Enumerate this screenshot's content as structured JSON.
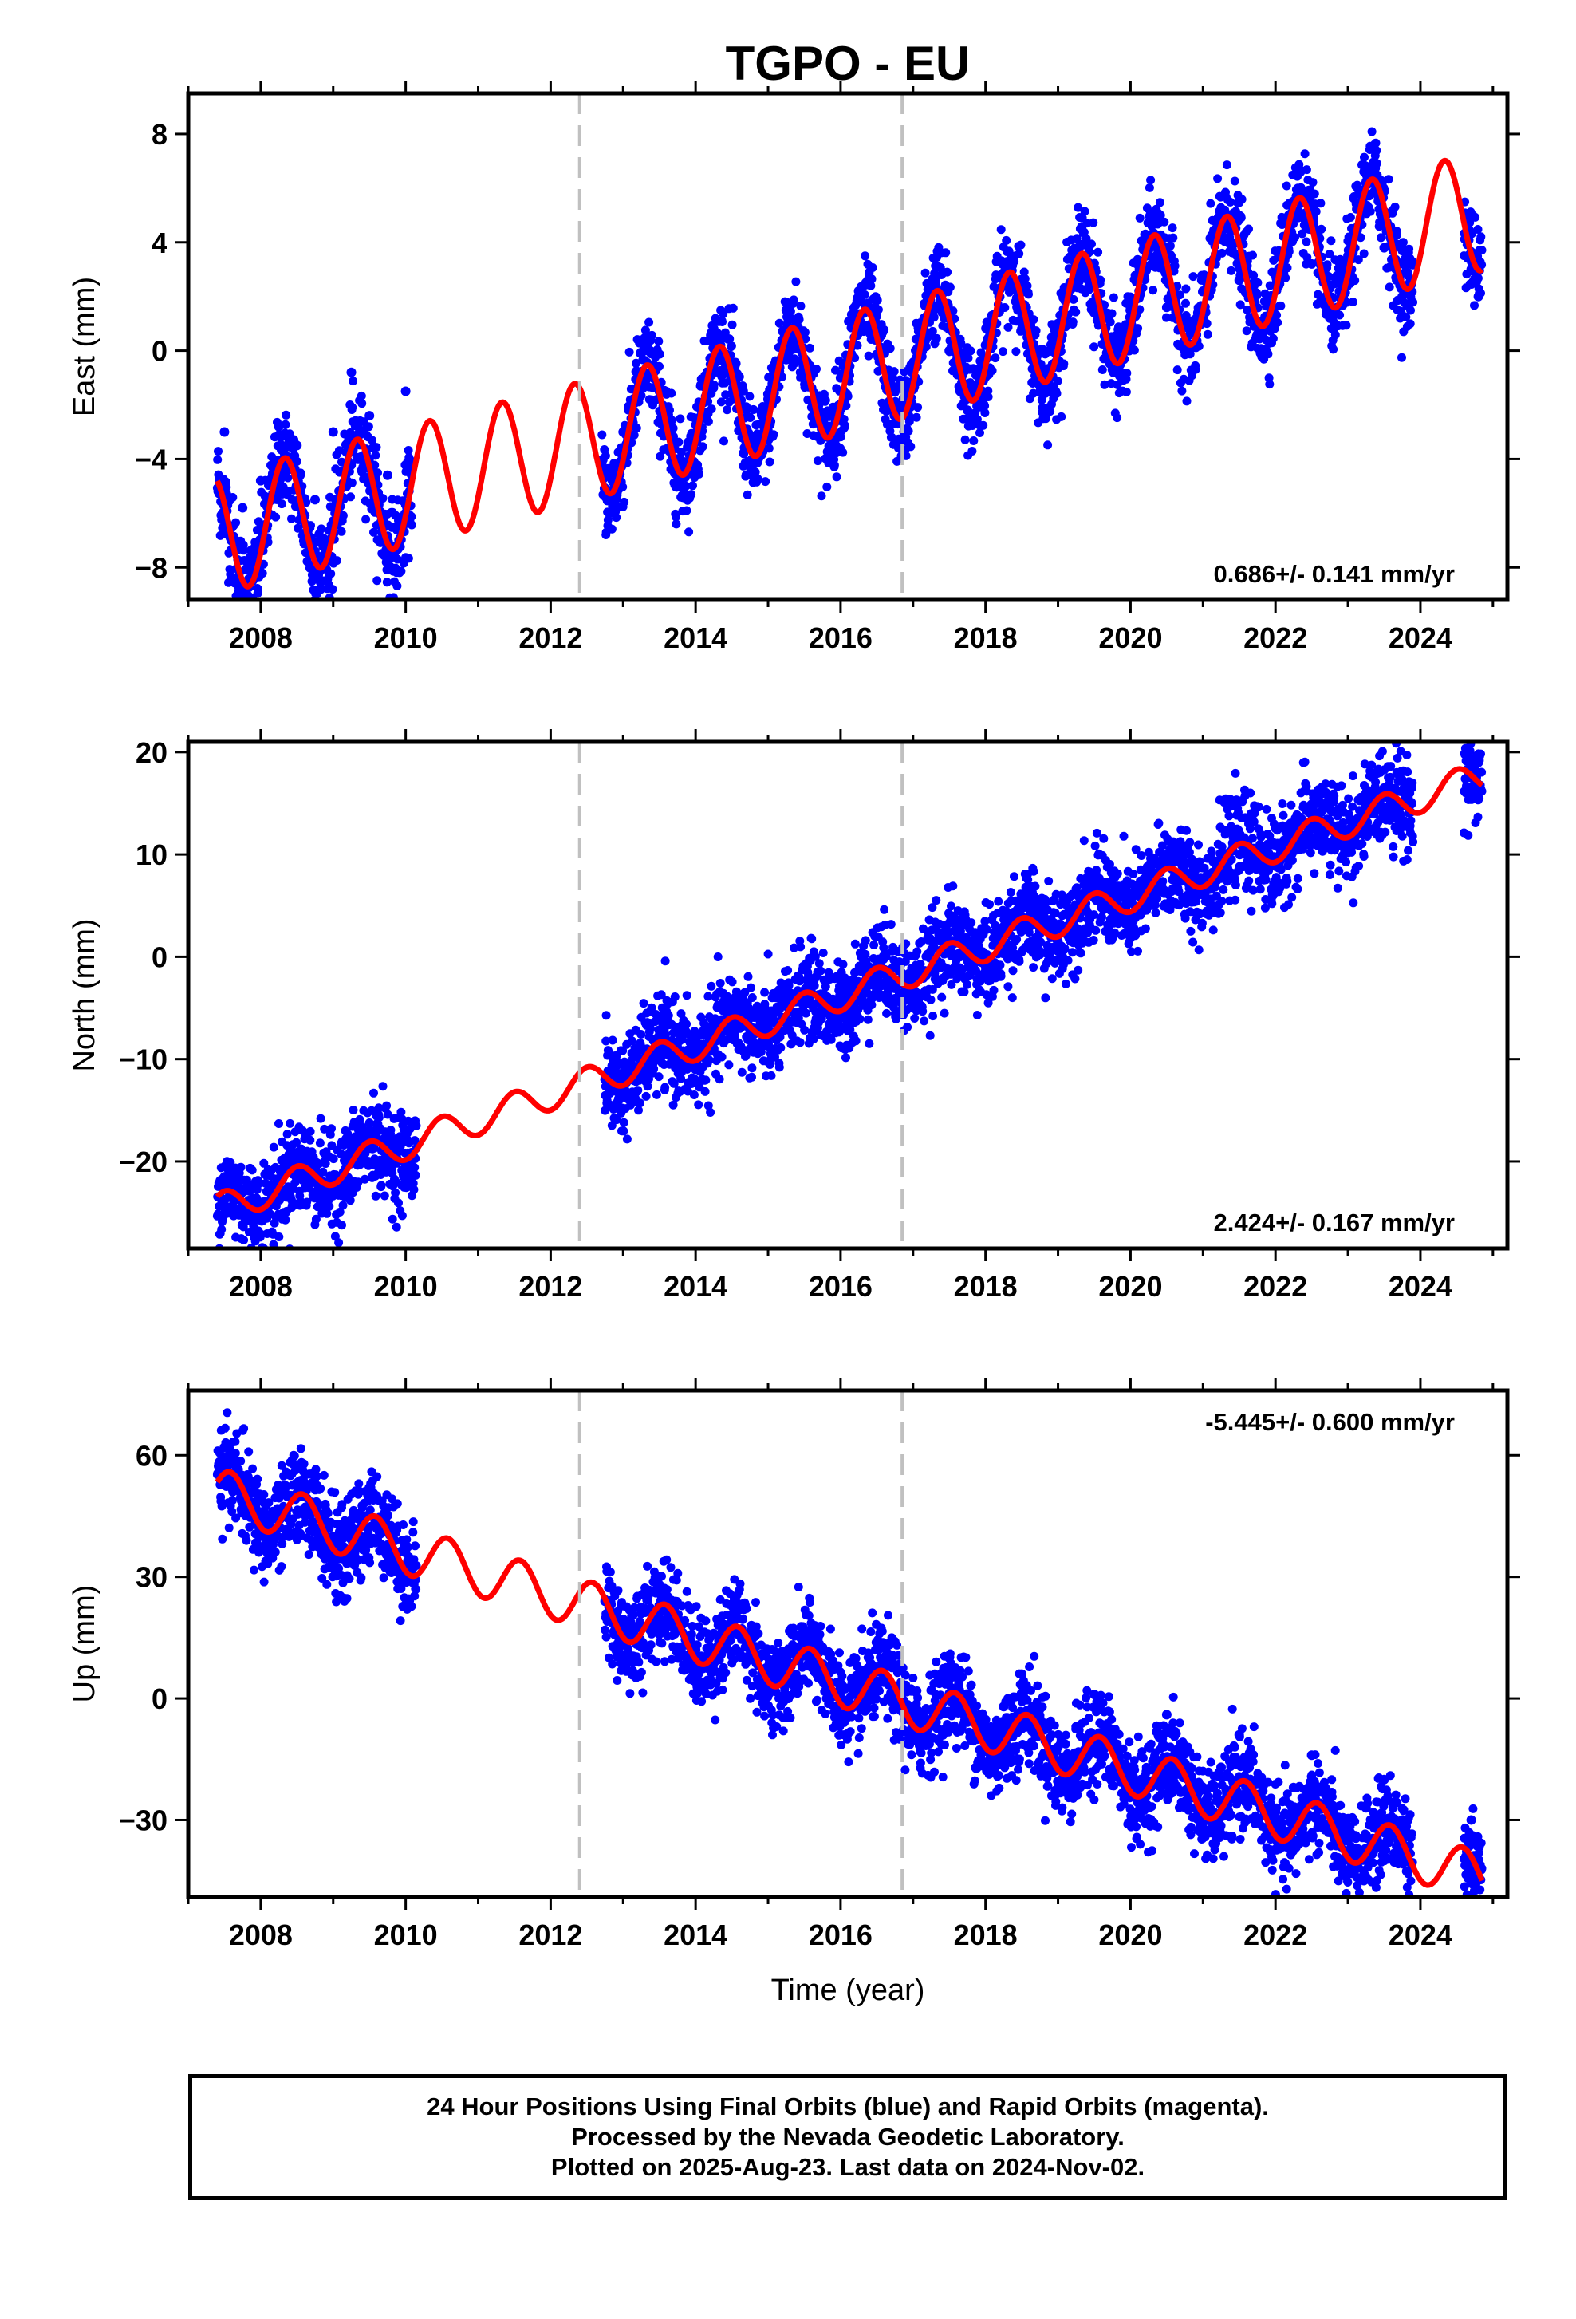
{
  "title": "TGPO - EU",
  "xlabel": "Time (year)",
  "footer": {
    "line1": "24 Hour Positions Using Final Orbits (blue) and Rapid Orbits (magenta).",
    "line2": "Processed by the Nevada Geodetic Laboratory.",
    "line3": "Plotted on 2025-Aug-23. Last data on 2024-Nov-02."
  },
  "colors": {
    "observations": "#0000ff",
    "model": "#ff0000",
    "discontinuity": "#c0c0c0",
    "frame": "#000000"
  },
  "chart_data": [
    {
      "type": "scatter",
      "ylabel": "East (mm)",
      "rate_label": "0.686+/- 0.141 mm/yr",
      "xlim": [
        2007.0,
        2025.2
      ],
      "ylim": [
        -9.2,
        9.5
      ],
      "xticks": [
        2008,
        2010,
        2012,
        2014,
        2016,
        2018,
        2020,
        2022,
        2024
      ],
      "yticks": [
        -8,
        -4,
        0,
        4,
        8
      ],
      "discontinuities": [
        2012.4,
        2016.85
      ],
      "grid": false,
      "series": [
        {
          "kind": "points",
          "segments": [
            [
              2007.4,
              2010.1
            ],
            [
              2012.7,
              2023.9
            ],
            [
              2024.6,
              2024.85
            ]
          ],
          "x": [
            2007.5,
            2007.75,
            2008.0,
            2008.25,
            2008.5,
            2008.75,
            2009.0,
            2009.25,
            2009.5,
            2009.75,
            2010.0,
            2012.75,
            2013.0,
            2013.25,
            2013.5,
            2013.75,
            2014.0,
            2014.25,
            2014.5,
            2014.75,
            2015.0,
            2015.25,
            2015.5,
            2015.75,
            2016.0,
            2016.25,
            2016.5,
            2016.75,
            2017.0,
            2017.25,
            2017.5,
            2017.75,
            2018.0,
            2018.25,
            2018.5,
            2018.75,
            2019.0,
            2019.25,
            2019.5,
            2019.75,
            2020.0,
            2020.25,
            2020.5,
            2020.75,
            2021.0,
            2021.25,
            2021.5,
            2021.75,
            2022.0,
            2022.25,
            2022.5,
            2022.75,
            2023.0,
            2023.25,
            2023.5,
            2023.75,
            2024.7,
            2024.8
          ],
          "y": [
            -3.0,
            -5.8,
            -4.8,
            -2.8,
            -3.5,
            -5.5,
            -3.0,
            -0.8,
            -2.4,
            -4.6,
            -1.5,
            -4.5,
            -3.0,
            -0.1,
            -1.5,
            -4.0,
            -2.5,
            0.8,
            -1.0,
            -3.5,
            -1.8,
            1.5,
            -0.3,
            -2.8,
            -1.0,
            2.2,
            0.5,
            -2.2,
            -0.6,
            2.2,
            0.0,
            -2.2,
            0.2,
            2.8,
            0.8,
            -1.3,
            1.0,
            3.5,
            1.4,
            -0.7,
            1.6,
            4.2,
            1.6,
            0.0,
            2.2,
            4.8,
            2.6,
            0.6,
            2.8,
            5.5,
            3.2,
            1.2,
            3.5,
            6.2,
            3.8,
            2.0,
            3.0,
            2.0
          ]
        },
        {
          "kind": "model",
          "trend": 0.686,
          "y_at_2016": -0.9,
          "amplitude": 2.2,
          "peak_phase": 0.33
        }
      ]
    },
    {
      "type": "scatter",
      "ylabel": "North (mm)",
      "rate_label": "2.424+/- 0.167 mm/yr",
      "xlim": [
        2007.0,
        2025.2
      ],
      "ylim": [
        -28.5,
        21.0
      ],
      "xticks": [
        2008,
        2010,
        2012,
        2014,
        2016,
        2018,
        2020,
        2022,
        2024
      ],
      "yticks": [
        -20,
        -10,
        0,
        10,
        20
      ],
      "discontinuities": [
        2012.4,
        2016.85
      ],
      "grid": false,
      "series": [
        {
          "kind": "points",
          "segments": [
            [
              2007.4,
              2010.15
            ],
            [
              2012.75,
              2023.9
            ],
            [
              2024.6,
              2024.85
            ]
          ],
          "x": [
            2007.5,
            2007.75,
            2008.0,
            2008.25,
            2008.5,
            2008.75,
            2009.0,
            2009.25,
            2009.5,
            2009.75,
            2010.0,
            2012.75,
            2013.0,
            2013.25,
            2013.5,
            2013.75,
            2014.0,
            2014.25,
            2014.5,
            2014.75,
            2015.0,
            2015.25,
            2015.5,
            2015.75,
            2016.0,
            2016.25,
            2016.5,
            2016.75,
            2017.0,
            2017.25,
            2017.5,
            2017.75,
            2018.0,
            2018.25,
            2018.5,
            2018.75,
            2019.0,
            2019.25,
            2019.5,
            2019.75,
            2020.0,
            2020.25,
            2020.5,
            2020.75,
            2021.0,
            2021.25,
            2021.5,
            2021.75,
            2022.0,
            2022.25,
            2022.5,
            2022.75,
            2023.0,
            2023.25,
            2023.5,
            2023.75,
            2024.7,
            2024.8
          ],
          "y": [
            -21.5,
            -23.0,
            -24.5,
            -22.0,
            -19.5,
            -21.0,
            -22.5,
            -20.0,
            -17.5,
            -19.0,
            -20.5,
            -12.0,
            -13.0,
            -11.0,
            -8.5,
            -10.0,
            -11.0,
            -9.0,
            -6.5,
            -7.5,
            -8.5,
            -6.5,
            -4.0,
            -5.0,
            -6.0,
            -3.8,
            -1.5,
            -2.7,
            -3.5,
            -1.5,
            1.5,
            -0.3,
            -1.0,
            1.2,
            3.8,
            2.5,
            1.5,
            3.8,
            6.5,
            5.5,
            4.0,
            6.2,
            9.0,
            7.5,
            6.5,
            8.5,
            11.5,
            10.0,
            9.0,
            11.0,
            14.0,
            12.5,
            11.5,
            13.8,
            16.5,
            15.0,
            18.5,
            19.0
          ]
        },
        {
          "kind": "model",
          "trend": 2.424,
          "y_at_2016": -3.8,
          "amplitude": 1.5,
          "peak_phase": 0.5
        }
      ]
    },
    {
      "type": "scatter",
      "ylabel": "Up (mm)",
      "rate_label": "-5.445+/- 0.600 mm/yr",
      "xlim": [
        2007.0,
        2025.2
      ],
      "ylim": [
        -49,
        76
      ],
      "xticks": [
        2008,
        2010,
        2012,
        2014,
        2016,
        2018,
        2020,
        2022,
        2024
      ],
      "yticks": [
        -30,
        0,
        30,
        60
      ],
      "discontinuities": [
        2012.4,
        2016.85
      ],
      "grid": false,
      "series": [
        {
          "kind": "points",
          "segments": [
            [
              2007.4,
              2010.15
            ],
            [
              2012.75,
              2023.9
            ],
            [
              2024.6,
              2024.85
            ]
          ],
          "x": [
            2007.5,
            2007.75,
            2008.0,
            2008.25,
            2008.5,
            2008.75,
            2009.0,
            2009.25,
            2009.5,
            2009.75,
            2010.0,
            2012.75,
            2013.0,
            2013.25,
            2013.5,
            2013.75,
            2014.0,
            2014.25,
            2014.5,
            2014.75,
            2015.0,
            2015.25,
            2015.5,
            2015.75,
            2016.0,
            2016.25,
            2016.5,
            2016.75,
            2017.0,
            2017.25,
            2017.5,
            2017.75,
            2018.0,
            2018.25,
            2018.5,
            2018.75,
            2019.0,
            2019.25,
            2019.5,
            2019.75,
            2020.0,
            2020.25,
            2020.5,
            2020.75,
            2021.0,
            2021.25,
            2021.5,
            2021.75,
            2022.0,
            2022.25,
            2022.5,
            2022.75,
            2023.0,
            2023.25,
            2023.5,
            2023.75,
            2024.7,
            2024.8
          ],
          "y": [
            62,
            52,
            46,
            50,
            57,
            48,
            40,
            44,
            52,
            42,
            36,
            24,
            17,
            21,
            28,
            19,
            12,
            16,
            23,
            13,
            6,
            11,
            17,
            7,
            1,
            6,
            12,
            3,
            -3,
            2,
            10,
            0,
            -7,
            -2,
            6,
            -5,
            -12,
            -7,
            1,
            -10,
            -17,
            -12,
            -4,
            -16,
            -22,
            -17,
            -9,
            -21,
            -28,
            -22,
            -14,
            -26,
            -32,
            -27,
            -20,
            -30,
            -30,
            -36
          ]
        },
        {
          "kind": "model",
          "trend": -5.445,
          "y_at_2016": 4.0,
          "amplitude": 6.0,
          "peak_phase": 0.58
        }
      ]
    }
  ]
}
